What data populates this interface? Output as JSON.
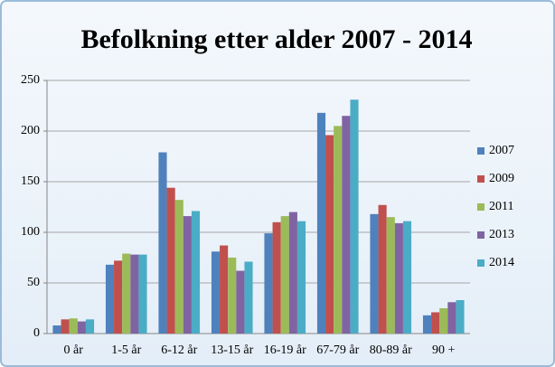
{
  "chart_data": {
    "type": "bar",
    "title": "Befolkning etter alder 2007 - 2014",
    "categories": [
      "0 år",
      "1-5 år",
      "6-12 år",
      "13-15 år",
      "16-19 år",
      "67-79 år",
      "80-89 år",
      "90 +"
    ],
    "series": [
      {
        "name": "2007",
        "color": "#4f81bd",
        "values": [
          8,
          68,
          179,
          81,
          99,
          218,
          118,
          18
        ]
      },
      {
        "name": "2009",
        "color": "#c0504d",
        "values": [
          14,
          72,
          144,
          87,
          110,
          196,
          127,
          21
        ]
      },
      {
        "name": "2011",
        "color": "#9bbb59",
        "values": [
          15,
          79,
          132,
          75,
          116,
          205,
          115,
          25
        ]
      },
      {
        "name": "2013",
        "color": "#8064a2",
        "values": [
          12,
          78,
          116,
          62,
          120,
          215,
          109,
          31
        ]
      },
      {
        "name": "2014",
        "color": "#4bacc6",
        "values": [
          14,
          78,
          121,
          71,
          111,
          231,
          111,
          33
        ]
      }
    ],
    "ylim": [
      0,
      250
    ],
    "yticks": [
      0,
      50,
      100,
      150,
      200,
      250
    ],
    "grid": true,
    "legend": "right"
  }
}
